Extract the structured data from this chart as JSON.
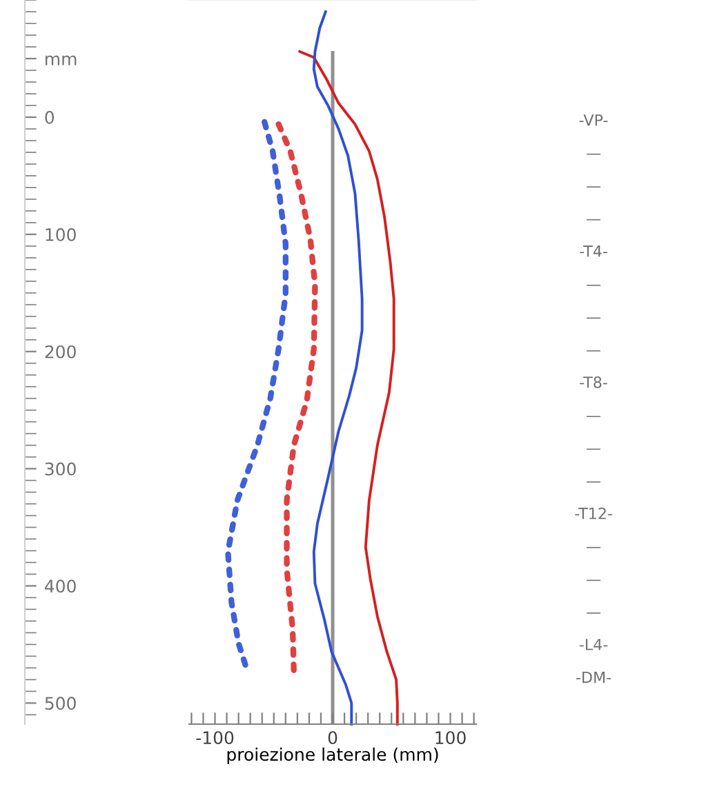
{
  "chart_data": {
    "type": "line",
    "xlabel": "proiezione laterale (mm)",
    "xlim": [
      -122,
      122
    ],
    "ylim": [
      518,
      -100
    ],
    "xticks": [
      {
        "value": -120,
        "label": null
      },
      {
        "value": -110,
        "label": null
      },
      -100,
      {
        "value": -90,
        "label": null
      },
      {
        "value": -80,
        "label": null
      },
      {
        "value": -70,
        "label": null
      },
      {
        "value": -60,
        "label": null
      },
      {
        "value": -50,
        "label": null
      },
      {
        "value": -40,
        "label": null
      },
      {
        "value": -30,
        "label": null
      },
      {
        "value": -20,
        "label": null
      },
      {
        "value": -10,
        "label": null
      },
      0,
      {
        "value": 10,
        "label": null
      },
      {
        "value": 20,
        "label": null
      },
      {
        "value": 30,
        "label": null
      },
      {
        "value": 40,
        "label": null
      },
      {
        "value": 50,
        "label": null
      },
      {
        "value": 60,
        "label": null
      },
      {
        "value": 70,
        "label": null
      },
      {
        "value": 80,
        "label": null
      },
      {
        "value": 90,
        "label": null
      },
      100,
      {
        "value": 110,
        "label": null
      },
      {
        "value": 120,
        "label": null
      }
    ],
    "yticks": [
      {
        "value": -50,
        "label": "mm"
      },
      0,
      100,
      200,
      300,
      400,
      500
    ],
    "series": [
      {
        "color": "#d42020",
        "line_style": "solid",
        "x": [
          -28,
          -16,
          -5,
          5,
          19,
          31,
          38,
          44,
          49,
          52,
          52,
          48,
          38,
          31,
          28,
          32,
          38,
          46,
          54,
          55,
          55
        ],
        "values": [
          -56,
          -51,
          -32,
          -12,
          6,
          29,
          53,
          85,
          124,
          155,
          198,
          235,
          280,
          327,
          367,
          394,
          426,
          456,
          480,
          500,
          518
        ]
      },
      {
        "color": "#3050d0",
        "line_style": "solid",
        "x": [
          -6,
          -11,
          -15,
          -16,
          -13,
          -4,
          5,
          13,
          19,
          22,
          25,
          25,
          20,
          14,
          5,
          -4,
          -13,
          -16,
          -15,
          -7,
          -1,
          11,
          16,
          16
        ],
        "values": [
          -90,
          -76,
          -56,
          -41,
          -26,
          -10,
          10,
          33,
          65,
          104,
          155,
          182,
          214,
          238,
          268,
          308,
          347,
          371,
          398,
          429,
          456,
          484,
          500,
          518
        ]
      },
      {
        "color": "#e04040",
        "line_style": "dotted",
        "x": [
          -46,
          -36,
          -27,
          -19,
          -15,
          -16,
          -22,
          -33,
          -39,
          -39,
          -34,
          -33
        ],
        "values": [
          6,
          29,
          65,
          104,
          143,
          198,
          242,
          280,
          327,
          386,
          437,
          473
        ]
      },
      {
        "color": "#4060d8",
        "line_style": "dotted",
        "x": [
          -58,
          -51,
          -45,
          -40,
          -40,
          -46,
          -53,
          -64,
          -81,
          -89,
          -86,
          -80,
          -74
        ],
        "values": [
          4,
          29,
          68,
          108,
          151,
          198,
          240,
          280,
          327,
          371,
          414,
          449,
          468
        ]
      }
    ],
    "ref_lines": [
      {
        "axis": "x",
        "value": 0,
        "color": "#909090",
        "line_style": "solid"
      }
    ],
    "annotations": [
      "-VP-",
      "—",
      "—",
      "—",
      "-T4-",
      "—",
      "—",
      "—",
      "-T8-",
      "—",
      "—",
      "—",
      "-T12-",
      "—",
      "—",
      "—",
      "-L4-",
      "-DM-"
    ],
    "grid": false,
    "legend": false
  }
}
